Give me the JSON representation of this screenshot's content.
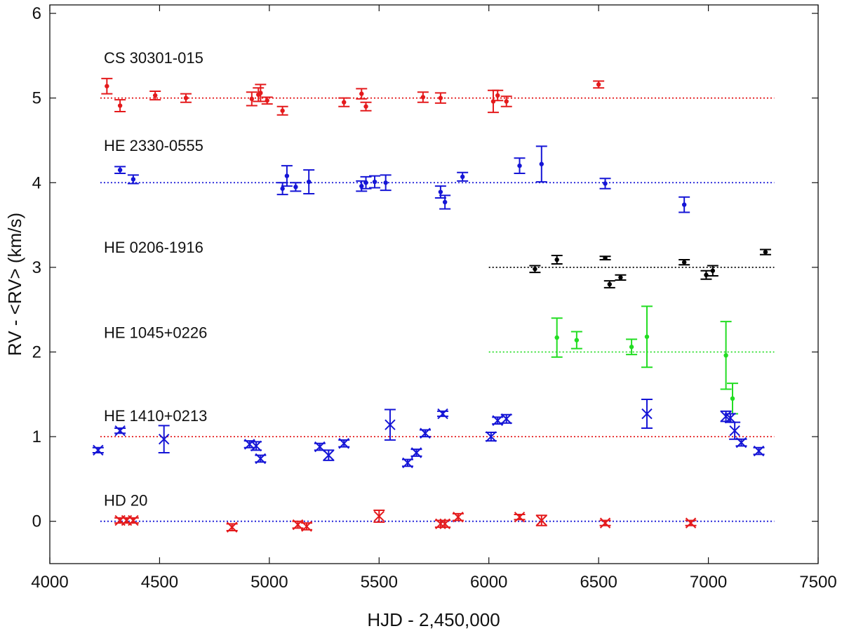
{
  "chart_data": {
    "type": "scatter",
    "xlabel": "HJD - 2,450,000",
    "ylabel": "RV - <RV> (km/s)",
    "xlim": [
      4000,
      7500
    ],
    "ylim": [
      -0.5,
      6.1
    ],
    "xticks": [
      4000,
      4500,
      5000,
      5500,
      6000,
      6500,
      7000,
      7500
    ],
    "yticks": [
      0,
      1,
      2,
      3,
      4,
      5,
      6
    ],
    "grid": false,
    "colors": {
      "red": "#e41a1c",
      "blue": "#1515d6",
      "black": "#000000",
      "green": "#22dd22"
    },
    "series": [
      {
        "name": "CS 30301-015",
        "label_pos": [
          4230,
          5.48
        ],
        "color": "red",
        "marker": "dot",
        "baseline": {
          "y": 5.0,
          "x": [
            4230,
            7300
          ],
          "color": "red"
        },
        "points": [
          [
            4260,
            5.14,
            0.09
          ],
          [
            4320,
            4.91,
            0.07
          ],
          [
            4480,
            5.03,
            0.05
          ],
          [
            4620,
            5.0,
            0.05
          ],
          [
            4920,
            4.99,
            0.08
          ],
          [
            4950,
            5.04,
            0.08
          ],
          [
            4960,
            5.06,
            0.1
          ],
          [
            4990,
            4.97,
            0.04
          ],
          [
            5060,
            4.85,
            0.05
          ],
          [
            5340,
            4.95,
            0.05
          ],
          [
            5420,
            5.05,
            0.06
          ],
          [
            5440,
            4.9,
            0.05
          ],
          [
            5700,
            5.01,
            0.06
          ],
          [
            5780,
            5.0,
            0.06
          ],
          [
            6020,
            4.96,
            0.13
          ],
          [
            6040,
            5.03,
            0.06
          ],
          [
            6080,
            4.96,
            0.06
          ],
          [
            6500,
            5.16,
            0.04
          ]
        ]
      },
      {
        "name": "HE 2330-0555",
        "label_pos": [
          4230,
          4.44
        ],
        "color": "blue",
        "marker": "dot",
        "baseline": {
          "y": 4.0,
          "x": [
            4230,
            7300
          ],
          "color": "blue"
        },
        "points": [
          [
            4320,
            4.15,
            0.04
          ],
          [
            4380,
            4.04,
            0.05
          ],
          [
            5060,
            3.93,
            0.07
          ],
          [
            5080,
            4.08,
            0.12
          ],
          [
            5120,
            3.95,
            0.05
          ],
          [
            5180,
            4.01,
            0.14
          ],
          [
            5420,
            3.96,
            0.06
          ],
          [
            5440,
            4.0,
            0.07
          ],
          [
            5480,
            4.01,
            0.07
          ],
          [
            5530,
            4.0,
            0.09
          ],
          [
            5780,
            3.89,
            0.07
          ],
          [
            5800,
            3.77,
            0.08
          ],
          [
            5880,
            4.07,
            0.05
          ],
          [
            6140,
            4.2,
            0.09
          ],
          [
            6240,
            4.22,
            0.21
          ],
          [
            6530,
            3.99,
            0.06
          ],
          [
            6890,
            3.74,
            0.09
          ]
        ]
      },
      {
        "name": "HE 0206-1916",
        "label_pos": [
          4230,
          3.24
        ],
        "color": "black",
        "marker": "dot",
        "baseline": {
          "y": 3.0,
          "x": [
            6000,
            7300
          ],
          "color": "black"
        },
        "points": [
          [
            6210,
            2.98,
            0.04
          ],
          [
            6310,
            3.09,
            0.05
          ],
          [
            6530,
            3.11,
            0.02
          ],
          [
            6550,
            2.8,
            0.04
          ],
          [
            6600,
            2.88,
            0.03
          ],
          [
            6890,
            3.06,
            0.03
          ],
          [
            6990,
            2.91,
            0.05
          ],
          [
            7020,
            2.96,
            0.06
          ],
          [
            7260,
            3.18,
            0.03
          ]
        ]
      },
      {
        "name": "HE 1045+0226",
        "label_pos": [
          4230,
          2.23
        ],
        "color": "green",
        "marker": "dot",
        "baseline": {
          "y": 2.0,
          "x": [
            6000,
            7300
          ],
          "color": "green"
        },
        "points": [
          [
            6310,
            2.17,
            0.23
          ],
          [
            6400,
            2.14,
            0.1
          ],
          [
            6650,
            2.06,
            0.09
          ],
          [
            6720,
            2.18,
            0.36
          ],
          [
            7080,
            1.96,
            0.4
          ],
          [
            7110,
            1.45,
            0.18
          ]
        ]
      },
      {
        "name": "HE 1410+0213",
        "label_pos": [
          4230,
          1.25
        ],
        "color": "blue",
        "marker": "cross",
        "baseline": {
          "y": 1.0,
          "x": [
            4230,
            7300
          ],
          "color": "red"
        },
        "points": [
          [
            4220,
            0.84,
            0.03
          ],
          [
            4320,
            1.07,
            0.03
          ],
          [
            4520,
            0.97,
            0.16
          ],
          [
            4910,
            0.91,
            0.04
          ],
          [
            4940,
            0.89,
            0.05
          ],
          [
            4960,
            0.74,
            0.04
          ],
          [
            5230,
            0.88,
            0.04
          ],
          [
            5270,
            0.78,
            0.06
          ],
          [
            5340,
            0.92,
            0.04
          ],
          [
            5550,
            1.14,
            0.18
          ],
          [
            5630,
            0.69,
            0.04
          ],
          [
            5670,
            0.81,
            0.04
          ],
          [
            5710,
            1.04,
            0.04
          ],
          [
            5790,
            1.27,
            0.03
          ],
          [
            6010,
            1.0,
            0.05
          ],
          [
            6040,
            1.19,
            0.04
          ],
          [
            6080,
            1.21,
            0.05
          ],
          [
            6720,
            1.27,
            0.17
          ],
          [
            7080,
            1.24,
            0.06
          ],
          [
            7100,
            1.22,
            0.05
          ],
          [
            7120,
            1.07,
            0.1
          ],
          [
            7150,
            0.93,
            0.04
          ],
          [
            7230,
            0.83,
            0.04
          ]
        ]
      },
      {
        "name": "HD 20",
        "label_pos": [
          4230,
          0.25
        ],
        "color": "red",
        "marker": "cross",
        "baseline": {
          "y": 0.0,
          "x": [
            4230,
            7300
          ],
          "color": "blue"
        },
        "points": [
          [
            4320,
            0.01,
            0.03
          ],
          [
            4350,
            0.01,
            0.03
          ],
          [
            4380,
            0.01,
            0.03
          ],
          [
            4830,
            -0.07,
            0.04
          ],
          [
            5130,
            -0.04,
            0.04
          ],
          [
            5170,
            -0.06,
            0.04
          ],
          [
            5500,
            0.06,
            0.07
          ],
          [
            5780,
            -0.03,
            0.04
          ],
          [
            5800,
            -0.03,
            0.04
          ],
          [
            5860,
            0.05,
            0.04
          ],
          [
            6140,
            0.05,
            0.03
          ],
          [
            6240,
            0.01,
            0.06
          ],
          [
            6530,
            -0.02,
            0.03
          ],
          [
            6920,
            -0.02,
            0.03
          ]
        ]
      }
    ]
  }
}
